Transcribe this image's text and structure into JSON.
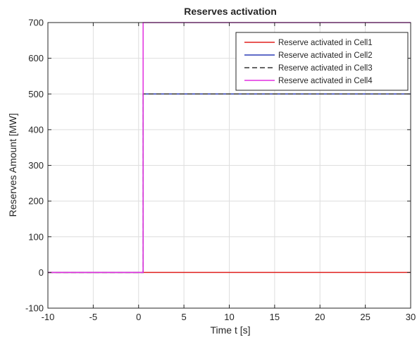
{
  "chart_data": {
    "type": "line",
    "title": "Reserves activation",
    "xlabel": "Time t [s]",
    "ylabel": "Reserves Amount [MW]",
    "xlim": [
      -10,
      30
    ],
    "ylim": [
      -100,
      700
    ],
    "xticks": [
      -10,
      -5,
      0,
      5,
      10,
      15,
      20,
      25,
      30
    ],
    "yticks": [
      -100,
      0,
      100,
      200,
      300,
      400,
      500,
      600,
      700
    ],
    "grid": true,
    "legend_location": "top-right",
    "series": [
      {
        "name": "Reserve activated in Cell1",
        "color": "#e0211f",
        "dash": "solid",
        "x": [
          -10,
          0.5,
          0.5,
          30
        ],
        "y": [
          0,
          0,
          0,
          0
        ]
      },
      {
        "name": "Reserve activated in Cell2",
        "color": "#2b3bb5",
        "dash": "solid",
        "x": [
          -10,
          0.5,
          0.5,
          30
        ],
        "y": [
          0,
          0,
          500,
          500
        ]
      },
      {
        "name": "Reserve activated in Cell3",
        "color": "#333333",
        "dash": "dashed",
        "x": [
          -10,
          0.5,
          0.5,
          30
        ],
        "y": [
          0,
          0,
          500,
          500
        ]
      },
      {
        "name": "Reserve activated in Cell4",
        "color": "#e22fe0",
        "dash": "solid",
        "x": [
          -10,
          0.5,
          0.5,
          30
        ],
        "y": [
          0,
          0,
          700,
          700
        ]
      }
    ]
  }
}
